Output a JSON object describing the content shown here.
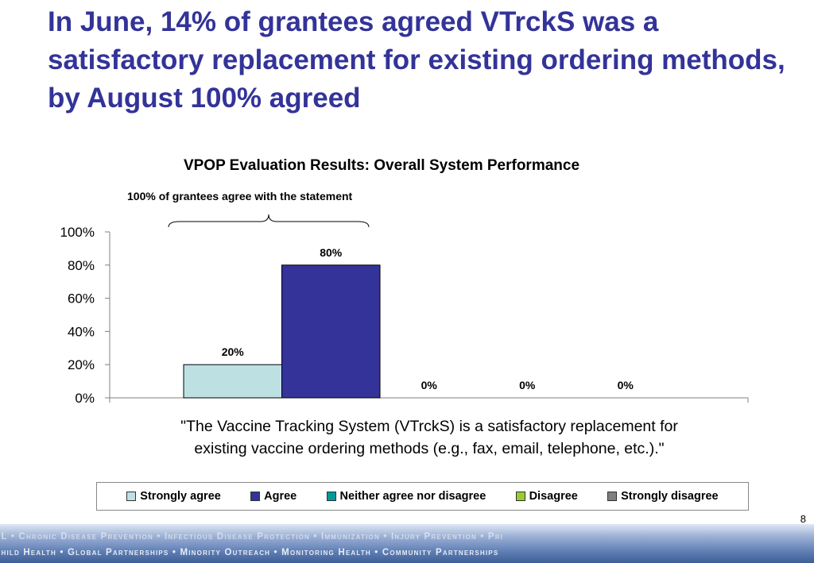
{
  "slide": {
    "headline": "In June, 14% of grantees agreed VTrckS was a satisfactory replacement for existing ordering methods, by August 100% agreed",
    "page_number": "8",
    "footer_line1": "AL • Chronic Disease Prevention • Infectious Disease Protection • Immunization • Injury Prevention • Pri",
    "footer_line2": "Child Health • Global Partnerships • Minority Outreach • Monitoring Health • Community Partnerships"
  },
  "chart_data": {
    "type": "bar",
    "title": "VPOP Evaluation Results: Overall System Performance",
    "annotation": "100% of grantees agree with the statement",
    "category_label": "\"The Vaccine Tracking System (VTrckS) is a satisfactory replacement for existing vaccine ordering methods (e.g., fax, email, telephone, etc.).\"",
    "category_label_lines": [
      "\"The Vaccine Tracking System (VTrckS) is a satisfactory replacement for",
      "existing vaccine ordering methods (e.g., fax, email, telephone, etc.).\""
    ],
    "ylim": [
      0,
      100
    ],
    "yticks": [
      0,
      20,
      40,
      60,
      80,
      100
    ],
    "ytick_labels": [
      "0%",
      "20%",
      "40%",
      "60%",
      "80%",
      "100%"
    ],
    "grid": false,
    "legend_position": "bottom",
    "series": [
      {
        "name": "Strongly agree",
        "value": 20,
        "label": "20%",
        "color": "#bde0e3"
      },
      {
        "name": "Agree",
        "value": 80,
        "label": "80%",
        "color": "#333399"
      },
      {
        "name": "Neither agree nor disagree",
        "value": 0,
        "label": "0%",
        "color": "#009999"
      },
      {
        "name": "Disagree",
        "value": 0,
        "label": "0%",
        "color": "#99cc33"
      },
      {
        "name": "Strongly disagree",
        "value": 0,
        "label": "0%",
        "color": "#808080"
      }
    ]
  }
}
